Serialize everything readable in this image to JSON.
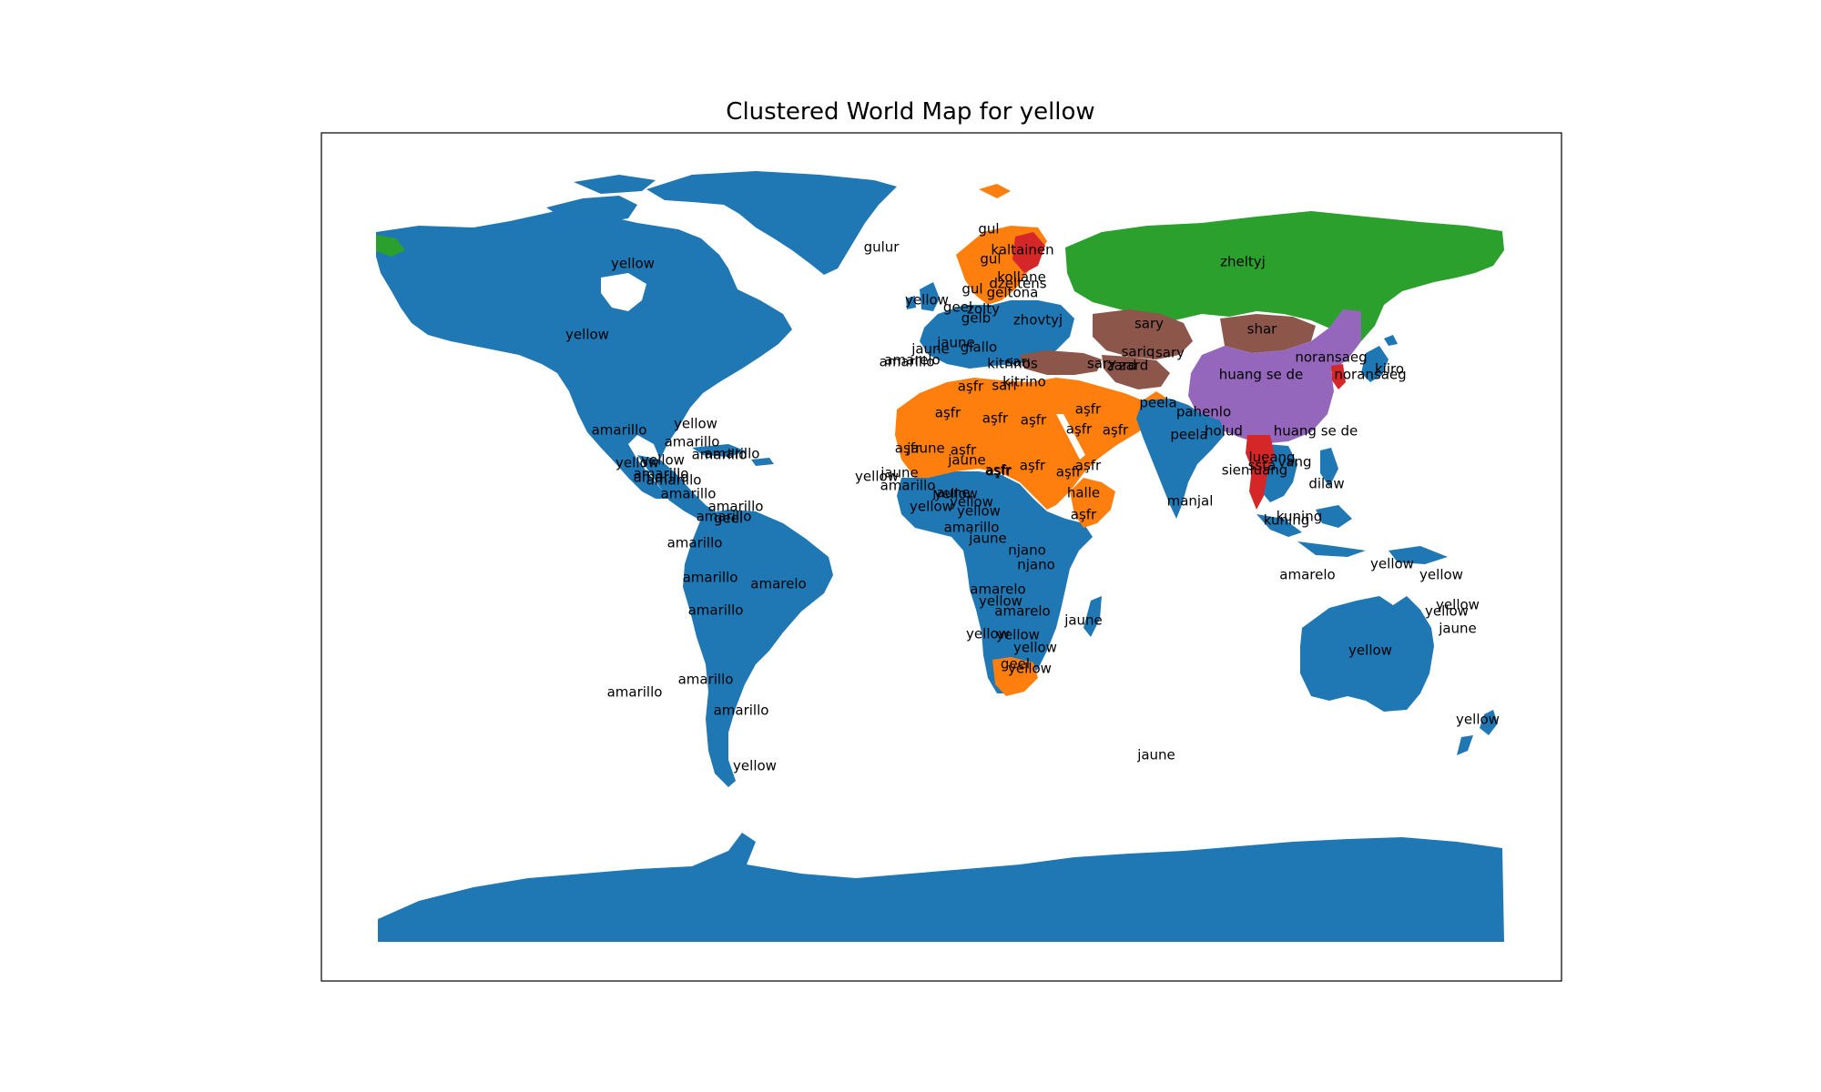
{
  "title": "Clustered World Map for yellow",
  "colors": {
    "cluster_blue": "#1f77b4",
    "cluster_orange": "#ff7f0e",
    "cluster_green": "#2ca02c",
    "cluster_red": "#d62728",
    "cluster_purple": "#9467bd",
    "cluster_brown": "#8c564b"
  },
  "labels": [
    "yellow",
    "yellow",
    "gulur",
    "gul",
    "kaltainen",
    "zheltyj",
    "gul",
    "kollane",
    "dzeltens",
    "gul",
    "geltona",
    "zhovtyj",
    "yellow",
    "geel",
    "gelb",
    "zolty",
    "sary",
    "shar",
    "jaune",
    "amarelo",
    "amarillo",
    "giallo",
    "sariq",
    "sary",
    "noransaeg",
    "noransaeg",
    "kiiro",
    "kitrinos",
    "sarı",
    "zard",
    "huang se de",
    "aşfr",
    "aşfr",
    "aşfr",
    "aşfr",
    "aşfr",
    "aşfr",
    "aşfr",
    "aşfr",
    "aşfr",
    "aşfr",
    "peela",
    "pahenlo",
    "peela",
    "holud",
    "huang se de",
    "amarillo",
    "yellow",
    "amarillo",
    "amarillo",
    "amarillo",
    "yellow",
    "amarillo",
    "amarillo",
    "yellow",
    "amarillo",
    "amarillo",
    "geel",
    "amarillo",
    "amarillo",
    "amarelo",
    "amarillo",
    "amarillo",
    "amarillo",
    "amarillo",
    "amarillo",
    "yellow",
    "amarillo",
    "aşfr",
    "jaune",
    "jaune",
    "jaune",
    "amarillo",
    "yellow",
    "yellow",
    "aşfr",
    "aşfr",
    "aşfr",
    "aşfr",
    "jaune",
    "yellow",
    "yellow",
    "amarillo",
    "jaune",
    "njano",
    "njano",
    "amarelo",
    "yellow",
    "amarelo",
    "jaune",
    "yellow",
    "yellow",
    "yellow",
    "geel",
    "yellow",
    "manjal",
    "sienluang",
    "dilaw",
    "kuning",
    "kuning",
    "amarelo",
    "yellow",
    "yellow",
    "yellow",
    "yellow",
    "jaune",
    "yellow",
    "yellow",
    "jaune",
    "lueang",
    "ssta",
    "vang",
    "halle",
    "yellow",
    "jaune",
    "kitrino",
    "sarı",
    "sary",
    "zard"
  ]
}
